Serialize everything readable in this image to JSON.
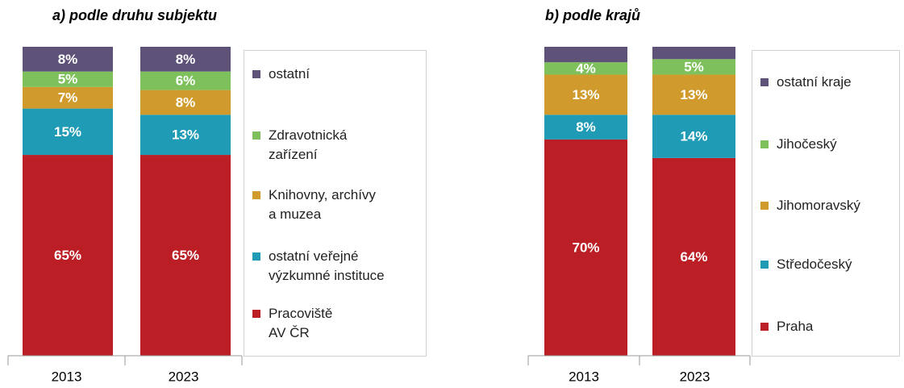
{
  "chart_data": [
    {
      "type": "stacked_bar",
      "title": "a) podle druhu subjektu",
      "categories": [
        "2013",
        "2023"
      ],
      "ylim": [
        0,
        100
      ],
      "series": [
        {
          "name": "Pracoviště\nAV ČR",
          "color": "#bb1e24",
          "values": [
            65,
            65
          ],
          "value_labels": [
            "65%",
            "65%"
          ]
        },
        {
          "name": "ostatní veřejné\nvýzkumné instituce",
          "color": "#1f9bb5",
          "values": [
            15,
            13
          ],
          "value_labels": [
            "15%",
            "13%"
          ]
        },
        {
          "name": "Knihovny, archívy\na muzea",
          "color": "#d09b2c",
          "values": [
            7,
            8
          ],
          "value_labels": [
            "7%",
            "8%"
          ]
        },
        {
          "name": "Zdravotnická\nzařízení",
          "color": "#7dc05c",
          "values": [
            5,
            6
          ],
          "value_labels": [
            "5%",
            "6%"
          ]
        },
        {
          "name": "ostatní",
          "color": "#5e5279",
          "values": [
            8,
            8
          ],
          "value_labels": [
            "8%",
            "8%"
          ]
        }
      ]
    },
    {
      "type": "stacked_bar",
      "title": "b) podle krajů",
      "categories": [
        "2013",
        "2023"
      ],
      "ylim": [
        0,
        100
      ],
      "series": [
        {
          "name": "Praha",
          "color": "#bb1e24",
          "values": [
            70,
            64
          ],
          "value_labels": [
            "70%",
            "64%"
          ]
        },
        {
          "name": "Středočeský",
          "color": "#1f9bb5",
          "values": [
            8,
            14
          ],
          "value_labels": [
            "8%",
            "14%"
          ]
        },
        {
          "name": "Jihomoravský",
          "color": "#d09b2c",
          "values": [
            13,
            13
          ],
          "value_labels": [
            "13%",
            "13%"
          ]
        },
        {
          "name": "Jihočeský",
          "color": "#7dc05c",
          "values": [
            4,
            5
          ],
          "value_labels": [
            "4%",
            "5%"
          ]
        },
        {
          "name": "ostatní kraje",
          "color": "#5e5279",
          "values": [
            5,
            4
          ]
        }
      ]
    }
  ]
}
